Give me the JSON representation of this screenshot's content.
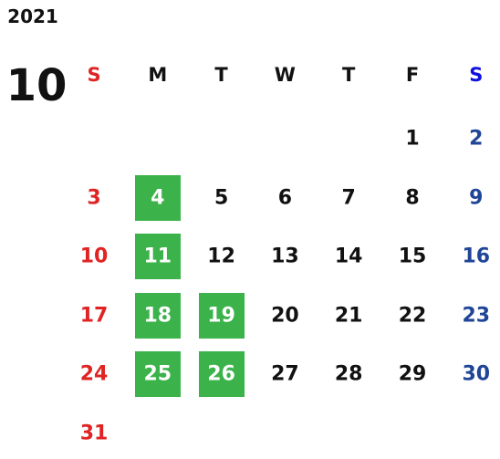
{
  "year": "2021",
  "month": "10",
  "weekdays": [
    "S",
    "M",
    "T",
    "W",
    "T",
    "F",
    "S"
  ],
  "weeks": [
    [
      null,
      null,
      null,
      null,
      null,
      1,
      2
    ],
    [
      3,
      4,
      5,
      6,
      7,
      8,
      9
    ],
    [
      10,
      11,
      12,
      13,
      14,
      15,
      16
    ],
    [
      17,
      18,
      19,
      20,
      21,
      22,
      23
    ],
    [
      24,
      25,
      26,
      27,
      28,
      29,
      30
    ],
    [
      31,
      null,
      null,
      null,
      null,
      null,
      null
    ]
  ],
  "highlighted": [
    4,
    11,
    18,
    19,
    25,
    26
  ],
  "highlight_color": "#3bb24a",
  "sunday_color": "#e02424",
  "saturday_header_color": "#1010e0",
  "saturday_color": "#1f4597"
}
